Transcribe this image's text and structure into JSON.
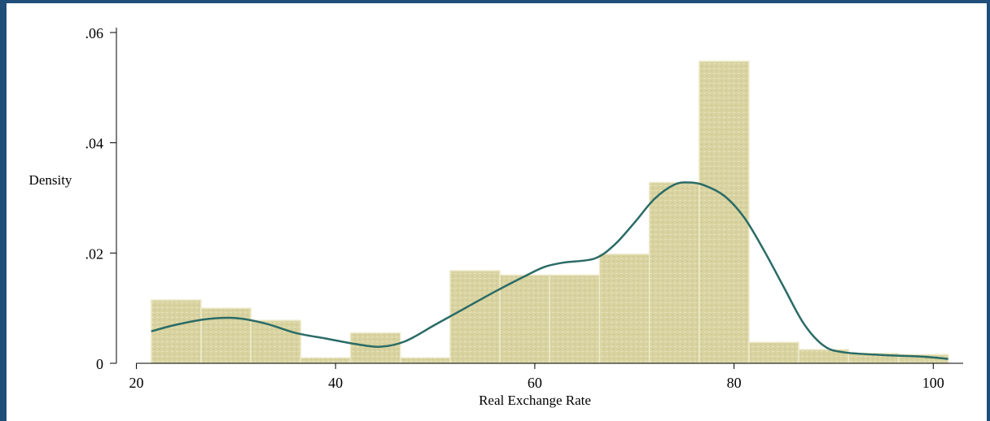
{
  "chart_data": {
    "type": "bar",
    "xlabel": "Real Exchange Rate",
    "ylabel": "Density",
    "xlim": [
      18,
      103
    ],
    "ylim": [
      0,
      0.06
    ],
    "x_ticks": [
      {
        "value": 20,
        "label": "20"
      },
      {
        "value": 40,
        "label": "40"
      },
      {
        "value": 60,
        "label": "60"
      },
      {
        "value": 80,
        "label": "80"
      },
      {
        "value": 100,
        "label": "100"
      }
    ],
    "y_ticks": [
      {
        "value": 0,
        "label": "0"
      },
      {
        "value": 0.02,
        "label": ".02"
      },
      {
        "value": 0.04,
        "label": ".04"
      },
      {
        "value": 0.06,
        "label": ".06"
      }
    ],
    "bins": [
      {
        "x0": 21.5,
        "x1": 26.5,
        "density": 0.0115
      },
      {
        "x0": 26.5,
        "x1": 31.5,
        "density": 0.01
      },
      {
        "x0": 31.5,
        "x1": 36.5,
        "density": 0.0078
      },
      {
        "x0": 36.5,
        "x1": 41.5,
        "density": 0.001
      },
      {
        "x0": 41.5,
        "x1": 46.5,
        "density": 0.0055
      },
      {
        "x0": 46.5,
        "x1": 51.5,
        "density": 0.001
      },
      {
        "x0": 51.5,
        "x1": 56.5,
        "density": 0.0168
      },
      {
        "x0": 56.5,
        "x1": 61.5,
        "density": 0.016
      },
      {
        "x0": 61.5,
        "x1": 66.5,
        "density": 0.016
      },
      {
        "x0": 66.5,
        "x1": 71.5,
        "density": 0.0198
      },
      {
        "x0": 71.5,
        "x1": 76.5,
        "density": 0.0328
      },
      {
        "x0": 76.5,
        "x1": 81.5,
        "density": 0.0548
      },
      {
        "x0": 81.5,
        "x1": 86.5,
        "density": 0.0038
      },
      {
        "x0": 86.5,
        "x1": 91.5,
        "density": 0.0025
      },
      {
        "x0": 91.5,
        "x1": 96.5,
        "density": 0.0018
      },
      {
        "x0": 96.5,
        "x1": 101.5,
        "density": 0.0016
      }
    ],
    "kde": {
      "x": [
        21.5,
        24,
        27,
        30,
        33,
        36,
        39,
        42,
        44.5,
        47,
        50,
        53,
        56,
        59,
        61,
        63,
        66,
        68,
        70,
        72,
        74,
        75.5,
        77,
        79,
        81,
        83,
        85,
        87,
        89,
        91,
        95,
        99,
        101.5
      ],
      "y": [
        0.0058,
        0.007,
        0.008,
        0.0082,
        0.0072,
        0.0055,
        0.0045,
        0.0035,
        0.003,
        0.004,
        0.007,
        0.01,
        0.013,
        0.0158,
        0.0175,
        0.0183,
        0.019,
        0.0215,
        0.0255,
        0.0298,
        0.0324,
        0.0328,
        0.0323,
        0.0304,
        0.0265,
        0.0205,
        0.0138,
        0.0072,
        0.0032,
        0.002,
        0.0015,
        0.0012,
        0.0008
      ]
    },
    "bar_color": "#d8d3a0",
    "bar_edge_color": "#eeebcc",
    "line_color": "#2a6b66",
    "grid": false,
    "legend": "none"
  }
}
